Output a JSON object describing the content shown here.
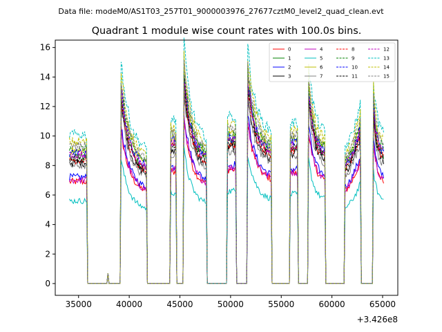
{
  "chart_data": {
    "type": "line",
    "suptitle": "Data file: modeM0/AS1T03_257T01_9000003976_27677cztM0_level2_quad_clean.evt",
    "title": "Quadrant 1 module wise count rates with 100.0s bins.",
    "xlabel": "",
    "ylabel": "",
    "x_offset_label": "+3.426e8",
    "xlim": [
      32700,
      66500
    ],
    "ylim": [
      -0.8,
      16.5
    ],
    "x_ticks": [
      35000,
      40000,
      45000,
      50000,
      55000,
      60000,
      65000
    ],
    "x_tick_labels": [
      "35000",
      "40000",
      "45000",
      "50000",
      "55000",
      "60000",
      "65000"
    ],
    "y_ticks": [
      0,
      2,
      4,
      6,
      8,
      10,
      12,
      14,
      16
    ],
    "y_tick_labels": [
      "0",
      "2",
      "4",
      "6",
      "8",
      "10",
      "12",
      "14",
      "16"
    ],
    "legend_position": "top-right",
    "series_profile": {
      "on_segments": [
        {
          "start": 34100,
          "end": 35800,
          "shape": "flat",
          "level": 1.0
        },
        {
          "start": 39200,
          "end": 41700,
          "shape": "decay",
          "peak": 1.5,
          "low": 0.88
        },
        {
          "start": 44100,
          "end": 44600,
          "shape": "flat",
          "level": 1.1
        },
        {
          "start": 45400,
          "end": 47600,
          "shape": "decay",
          "peak": 1.62,
          "low": 0.95
        },
        {
          "start": 49700,
          "end": 50500,
          "shape": "flat",
          "level": 1.12
        },
        {
          "start": 51700,
          "end": 54000,
          "shape": "decay",
          "peak": 1.58,
          "low": 1.0
        },
        {
          "start": 55900,
          "end": 56600,
          "shape": "flat",
          "level": 1.08
        },
        {
          "start": 57700,
          "end": 59300,
          "shape": "decay",
          "peak": 1.5,
          "low": 1.0
        },
        {
          "start": 61300,
          "end": 62800,
          "shape": "rise",
          "peak": 1.2,
          "low": 0.92
        },
        {
          "start": 64100,
          "end": 65100,
          "shape": "decay",
          "peak": 1.38,
          "low": 1.0
        }
      ],
      "spike": {
        "x": 37900,
        "value": 0.7
      }
    },
    "series": [
      {
        "name": "0",
        "color": "#ff0000",
        "dash": "solid",
        "scale": 6.9
      },
      {
        "name": "1",
        "color": "#008000",
        "dash": "solid",
        "scale": 8.6
      },
      {
        "name": "2",
        "color": "#0000ff",
        "dash": "solid",
        "scale": 7.2
      },
      {
        "name": "3",
        "color": "#000000",
        "dash": "solid",
        "scale": 8.2
      },
      {
        "name": "4",
        "color": "#bf00bf",
        "dash": "solid",
        "scale": 7.0
      },
      {
        "name": "5",
        "color": "#00bfbf",
        "dash": "solid",
        "scale": 5.6
      },
      {
        "name": "6",
        "color": "#bfbf00",
        "dash": "solid",
        "scale": 9.0
      },
      {
        "name": "7",
        "color": "#808080",
        "dash": "solid",
        "scale": 8.0
      },
      {
        "name": "8",
        "color": "#ff0000",
        "dash": "dashed",
        "scale": 8.4
      },
      {
        "name": "9",
        "color": "#008000",
        "dash": "dashed",
        "scale": 9.1
      },
      {
        "name": "10",
        "color": "#0000ff",
        "dash": "dashed",
        "scale": 8.8
      },
      {
        "name": "11",
        "color": "#000000",
        "dash": "dashed",
        "scale": 8.5
      },
      {
        "name": "12",
        "color": "#bf00bf",
        "dash": "dashed",
        "scale": 8.7
      },
      {
        "name": "13",
        "color": "#00bfbf",
        "dash": "dashed",
        "scale": 10.1
      },
      {
        "name": "14",
        "color": "#bfbf00",
        "dash": "dashed",
        "scale": 9.6
      },
      {
        "name": "15",
        "color": "#808080",
        "dash": "dashed",
        "scale": 9.3
      }
    ]
  }
}
